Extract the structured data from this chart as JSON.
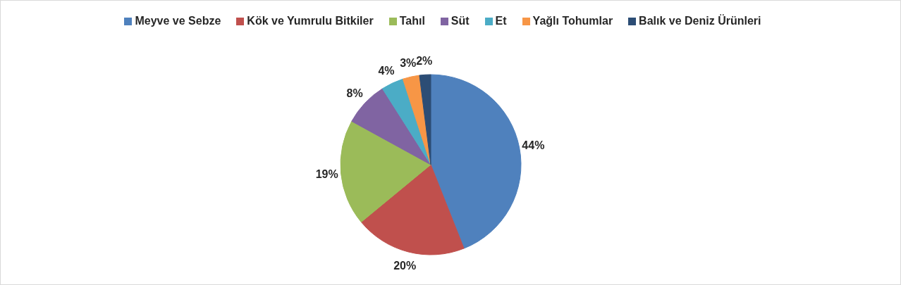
{
  "chart_data": {
    "type": "pie",
    "categories": [
      "Meyve ve Sebze",
      "Kök ve Yumrulu Bitkiler",
      "Tahıl",
      "Süt",
      "Et",
      "Yağlı Tohumlar",
      "Balık ve Deniz Ürünleri"
    ],
    "values": [
      44,
      20,
      19,
      8,
      4,
      3,
      2
    ],
    "colors": [
      "#4f81bd",
      "#c0504d",
      "#9bbb59",
      "#8064a2",
      "#4bacc6",
      "#f79646",
      "#2c4d75"
    ],
    "value_labels": [
      "44%",
      "20%",
      "19%",
      "8%",
      "4%",
      "3%",
      "2%"
    ],
    "legend": "top"
  }
}
